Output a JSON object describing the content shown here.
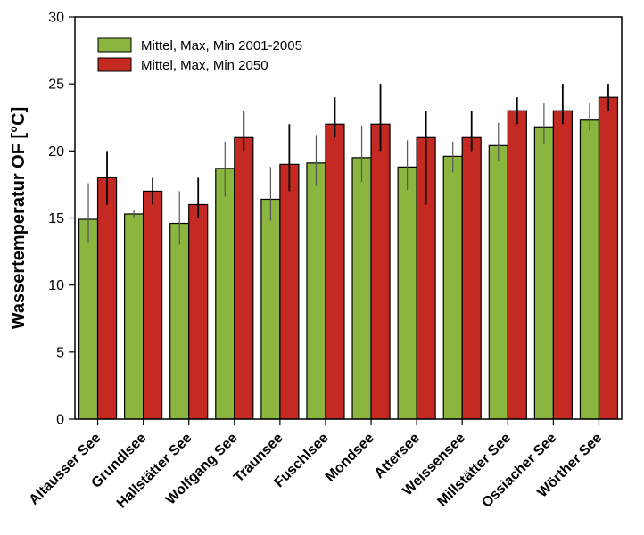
{
  "chart_data": {
    "type": "bar",
    "title": "",
    "xlabel": "",
    "ylabel": "Wassertemperatur OF [°C]",
    "ylim": [
      0,
      30
    ],
    "yticks": [
      0,
      5,
      10,
      15,
      20,
      25,
      30
    ],
    "grid": false,
    "legend_position": "top-left",
    "categories": [
      "Altausser See",
      "Grundlsee",
      "Hallstätter See",
      "Wolfgang See",
      "Traunsee",
      "Fuschlsee",
      "Mondsee",
      "Attersee",
      "Weissensee",
      "Millstätter See",
      "Ossiacher See",
      "Wörther See"
    ],
    "series": [
      {
        "name": "Mittel, Max, Min 2001-2005",
        "color": "#8ab53f",
        "values": [
          14.9,
          15.3,
          14.6,
          18.7,
          16.4,
          19.1,
          19.5,
          18.8,
          19.6,
          20.4,
          21.8,
          22.3
        ],
        "max": [
          17.6,
          15.6,
          17.0,
          20.7,
          18.8,
          21.2,
          21.9,
          20.8,
          20.7,
          22.1,
          23.6,
          23.6
        ],
        "min": [
          13.1,
          15.0,
          13.0,
          16.6,
          14.8,
          17.4,
          17.7,
          17.1,
          18.4,
          19.3,
          20.5,
          21.5
        ]
      },
      {
        "name": "Mittel, Max, Min 2050",
        "color": "#c42a22",
        "values": [
          18.0,
          17.0,
          16.0,
          21.0,
          19.0,
          22.0,
          22.0,
          21.0,
          21.0,
          23.0,
          23.0,
          24.0
        ],
        "max": [
          20.0,
          18.0,
          18.0,
          23.0,
          22.0,
          24.0,
          25.0,
          23.0,
          23.0,
          24.0,
          25.0,
          25.0
        ],
        "min": [
          16.0,
          16.0,
          15.0,
          20.0,
          17.0,
          21.0,
          20.0,
          16.0,
          20.0,
          22.0,
          22.0,
          23.0
        ]
      }
    ]
  }
}
